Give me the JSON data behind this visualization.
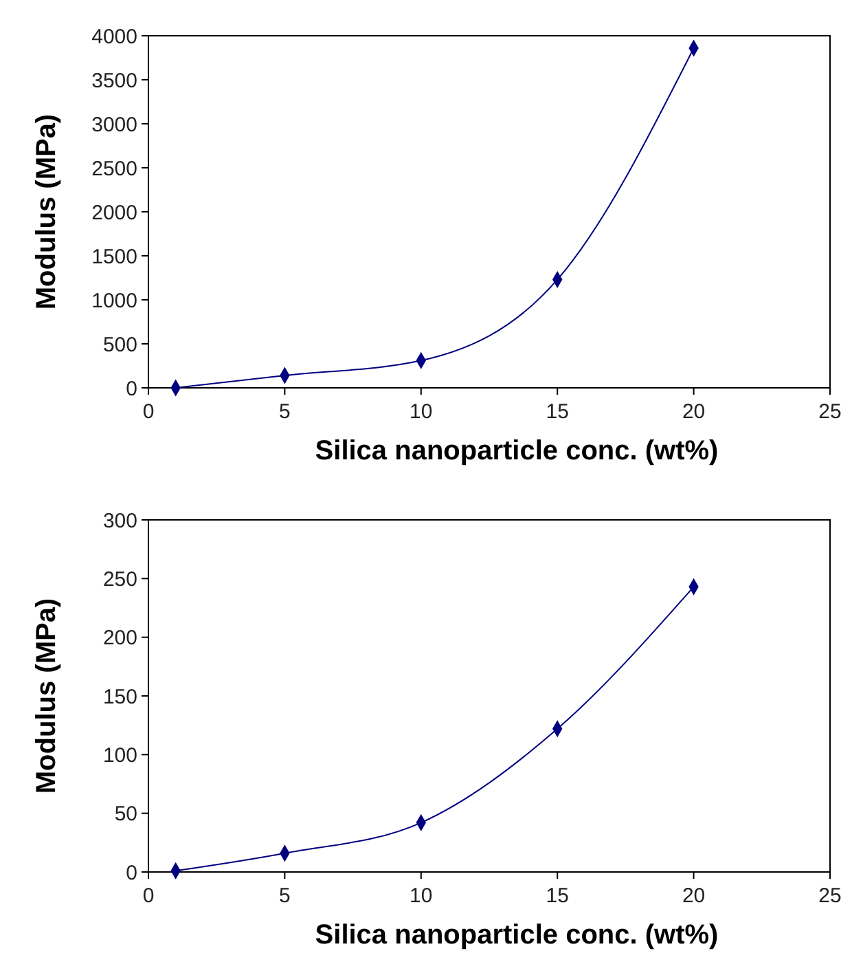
{
  "chart_data": [
    {
      "type": "line",
      "xlabel": "Silica nanoparticle conc. (wt%)",
      "ylabel": "Modulus (MPa)",
      "x": [
        1,
        5,
        10,
        15,
        20
      ],
      "series": [
        {
          "color": "#000080",
          "values": [
            0,
            140,
            310,
            1230,
            3860
          ]
        }
      ],
      "xlim": [
        0,
        25
      ],
      "xticks": [
        0,
        5,
        10,
        15,
        20,
        25
      ],
      "ylim": [
        0,
        4000
      ],
      "yticks": [
        0,
        500,
        1000,
        1500,
        2000,
        2500,
        3000,
        3500,
        4000
      ],
      "grid": false,
      "marker": "diamond",
      "line_style": "solid"
    },
    {
      "type": "line",
      "xlabel": "Silica nanoparticle conc. (wt%)",
      "ylabel": "Modulus (MPa)",
      "x": [
        1,
        5,
        10,
        15,
        20
      ],
      "series": [
        {
          "color": "#000080",
          "values": [
            1,
            16,
            42,
            122,
            243
          ]
        }
      ],
      "xlim": [
        0,
        25
      ],
      "xticks": [
        0,
        5,
        10,
        15,
        20,
        25
      ],
      "ylim": [
        0,
        300
      ],
      "yticks": [
        0,
        50,
        100,
        150,
        200,
        250,
        300
      ],
      "grid": false,
      "marker": "diamond",
      "line_style": "solid"
    }
  ]
}
